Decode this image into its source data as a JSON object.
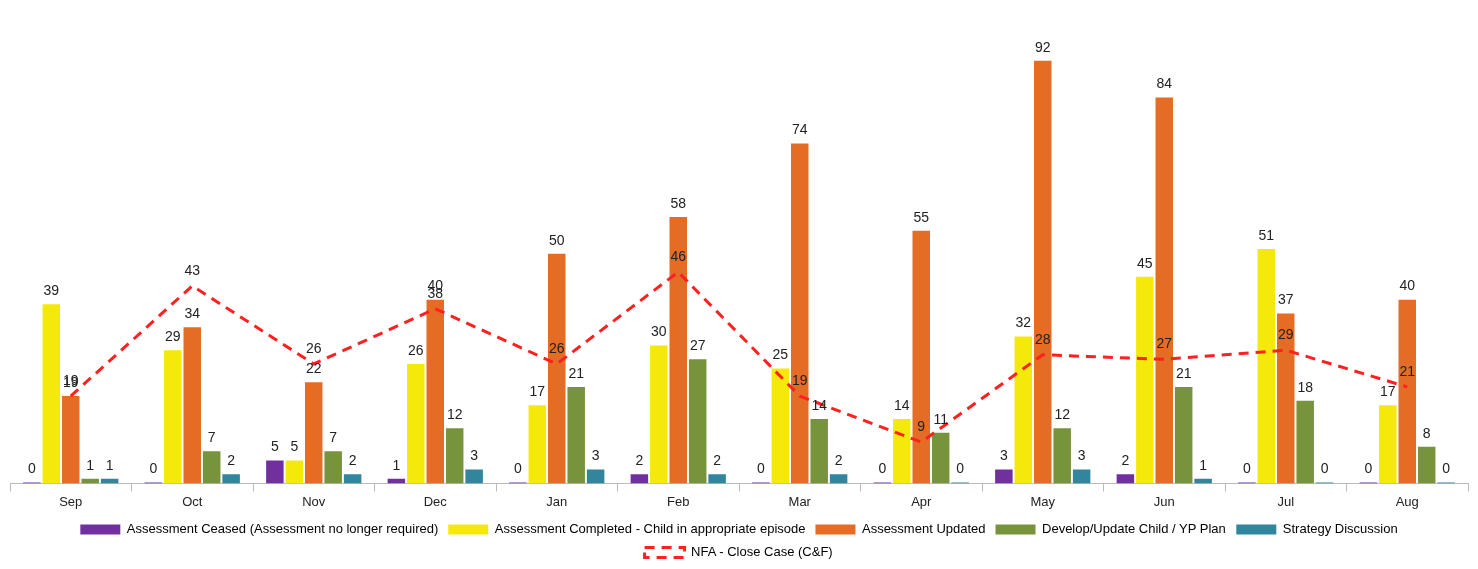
{
  "chart_data": {
    "type": "bar",
    "categories": [
      "Sep",
      "Oct",
      "Nov",
      "Dec",
      "Jan",
      "Feb",
      "Mar",
      "Apr",
      "May",
      "Jun",
      "Jul",
      "Aug"
    ],
    "series": [
      {
        "name": "Assessment Ceased (Assessment no longer required)",
        "color": "#7030a0",
        "values": [
          0,
          0,
          5,
          1,
          0,
          2,
          0,
          0,
          3,
          2,
          0,
          0
        ]
      },
      {
        "name": "Assessment Completed - Child in appropriate episode",
        "color": "#f5e90c",
        "values": [
          39,
          29,
          5,
          26,
          17,
          30,
          25,
          14,
          32,
          45,
          51,
          17
        ]
      },
      {
        "name": "Assessment Updated",
        "color": "#e46c25",
        "values": [
          19,
          34,
          22,
          40,
          50,
          58,
          74,
          55,
          92,
          84,
          37,
          40
        ]
      },
      {
        "name": "Develop/Update Child / YP Plan",
        "color": "#77933c",
        "values": [
          1,
          7,
          7,
          12,
          21,
          27,
          14,
          11,
          12,
          21,
          18,
          8
        ]
      },
      {
        "name": "Strategy Discussion",
        "color": "#31859c",
        "values": [
          1,
          2,
          2,
          3,
          3,
          2,
          2,
          0,
          3,
          1,
          0,
          0
        ]
      },
      {
        "name": "NFA - Close Case (C&F)",
        "type": "line",
        "color": "#ff2020",
        "line_style": "dashed",
        "marker": "none",
        "values": [
          19,
          43,
          26,
          38,
          26,
          46,
          19,
          9,
          28,
          27,
          29,
          21
        ]
      }
    ],
    "data_labels": true,
    "legend": "bottom",
    "grid": false,
    "tick_labels": "x"
  }
}
